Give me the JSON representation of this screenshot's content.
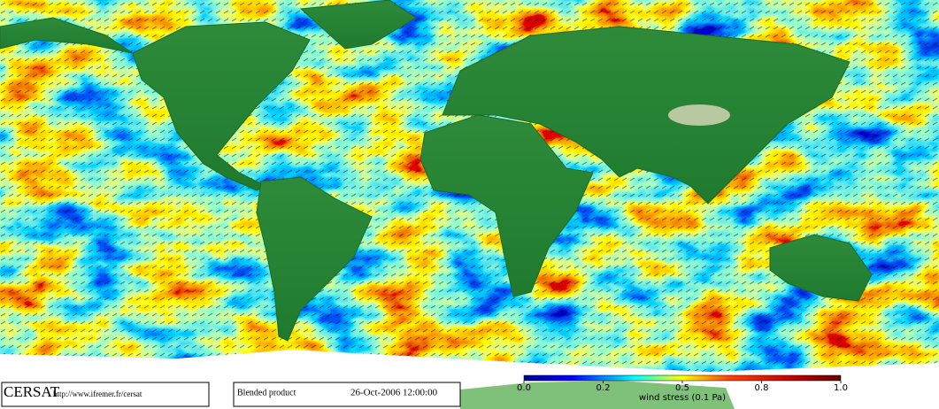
{
  "footer": {
    "logo": "CERSAT",
    "url": "http://www.ifremer.fr/cersat",
    "product": "Blended product",
    "date": "26-Oct-2006 12:00:00"
  },
  "colorbar": {
    "title": "wind stress (0.1 Pa)",
    "ticks": [
      {
        "value": 0,
        "label": "0.0"
      },
      {
        "value": 0.2,
        "label": "0.2"
      },
      {
        "value": 0.5,
        "label": "0.5"
      },
      {
        "value": 0.8,
        "label": "0.8"
      },
      {
        "value": 1,
        "label": "1.0"
      }
    ]
  }
}
